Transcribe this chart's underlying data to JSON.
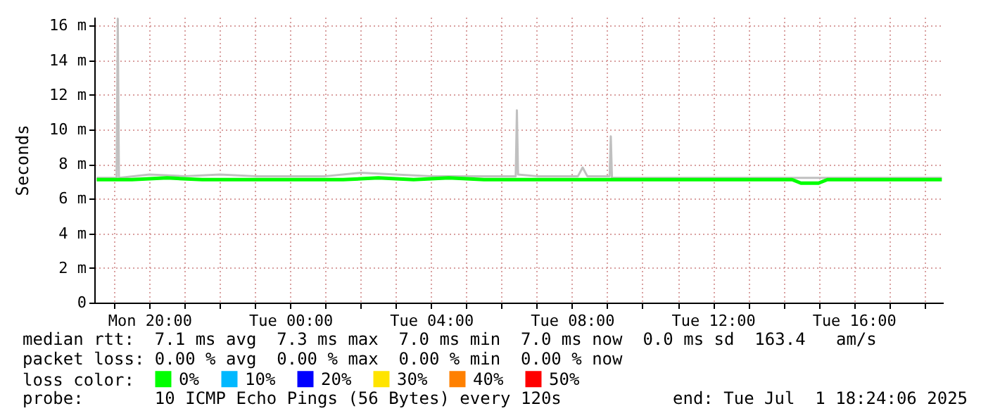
{
  "chart_data": {
    "type": "line",
    "ylabel": "Seconds",
    "legend_title": "loss color:",
    "legend": "bottom",
    "grid": true,
    "line_style": "solid",
    "xlim": [
      "2025-06-30T18:26",
      "2025-07-01T18:32"
    ],
    "xticks": [
      {
        "value": "2025-06-30T19:00",
        "label": null
      },
      {
        "value": "2025-06-30T20:00",
        "label": "Mon 20:00"
      },
      {
        "value": "2025-06-30T21:00",
        "label": null
      },
      {
        "value": "2025-06-30T22:00",
        "label": null
      },
      {
        "value": "2025-06-30T23:00",
        "label": null
      },
      {
        "value": "2025-07-01T00:00",
        "label": "Tue 00:00"
      },
      {
        "value": "2025-07-01T01:00",
        "label": null
      },
      {
        "value": "2025-07-01T02:00",
        "label": null
      },
      {
        "value": "2025-07-01T03:00",
        "label": null
      },
      {
        "value": "2025-07-01T04:00",
        "label": "Tue 04:00"
      },
      {
        "value": "2025-07-01T05:00",
        "label": null
      },
      {
        "value": "2025-07-01T06:00",
        "label": null
      },
      {
        "value": "2025-07-01T07:00",
        "label": null
      },
      {
        "value": "2025-07-01T08:00",
        "label": "Tue 08:00"
      },
      {
        "value": "2025-07-01T09:00",
        "label": null
      },
      {
        "value": "2025-07-01T10:00",
        "label": null
      },
      {
        "value": "2025-07-01T11:00",
        "label": null
      },
      {
        "value": "2025-07-01T12:00",
        "label": "Tue 12:00"
      },
      {
        "value": "2025-07-01T13:00",
        "label": null
      },
      {
        "value": "2025-07-01T14:00",
        "label": null
      },
      {
        "value": "2025-07-01T15:00",
        "label": null
      },
      {
        "value": "2025-07-01T16:00",
        "label": "Tue 16:00"
      },
      {
        "value": "2025-07-01T17:00",
        "label": null
      },
      {
        "value": "2025-07-01T18:00",
        "label": null
      }
    ],
    "ylim": [
      0,
      16.5
    ],
    "yticks": [
      0,
      {
        "value": 2,
        "label": "2 m"
      },
      {
        "value": 4,
        "label": "4 m"
      },
      {
        "value": 6,
        "label": "6 m"
      },
      {
        "value": 8,
        "label": "8 m"
      },
      {
        "value": 10,
        "label": "10 m"
      },
      {
        "value": 12,
        "label": "12 m"
      },
      {
        "value": 14,
        "label": "14 m"
      },
      {
        "value": 16,
        "label": "16 m"
      }
    ],
    "series": [
      {
        "color": "#c0c0c0",
        "x": [
          "2025-06-30T18:30",
          "2025-06-30T19:04",
          "2025-06-30T19:06",
          "2025-06-30T19:08",
          "2025-06-30T20:00",
          "2025-06-30T21:00",
          "2025-06-30T22:00",
          "2025-06-30T23:00",
          "2025-07-01T00:00",
          "2025-07-01T01:00",
          "2025-07-01T02:00",
          "2025-07-01T03:00",
          "2025-07-01T04:00",
          "2025-07-01T05:00",
          "2025-07-01T06:00",
          "2025-07-01T06:24",
          "2025-07-01T06:26",
          "2025-07-01T06:28",
          "2025-07-01T07:00",
          "2025-07-01T08:00",
          "2025-07-01T08:10",
          "2025-07-01T08:18",
          "2025-07-01T08:26",
          "2025-07-01T09:04",
          "2025-07-01T09:06",
          "2025-07-01T09:08",
          "2025-07-01T10:00",
          "2025-07-01T11:00",
          "2025-07-01T12:00",
          "2025-07-01T13:00",
          "2025-07-01T14:00",
          "2025-07-01T15:00",
          "2025-07-01T16:00",
          "2025-07-01T17:00",
          "2025-07-01T18:00",
          "2025-07-01T18:30"
        ],
        "values": [
          7.2,
          7.2,
          16.4,
          7.2,
          7.4,
          7.3,
          7.4,
          7.3,
          7.3,
          7.3,
          7.5,
          7.4,
          7.3,
          7.3,
          7.3,
          7.3,
          11.1,
          7.4,
          7.3,
          7.3,
          7.3,
          7.8,
          7.3,
          7.3,
          9.6,
          7.2,
          7.2,
          7.2,
          7.2,
          7.2,
          7.2,
          7.2,
          7.2,
          7.2,
          7.2,
          7.2
        ]
      },
      {
        "name": "0%",
        "color": "#00ff00",
        "x": [
          "2025-06-30T18:30",
          "2025-06-30T19:30",
          "2025-06-30T20:30",
          "2025-06-30T21:30",
          "2025-06-30T22:30",
          "2025-06-30T23:30",
          "2025-07-01T00:30",
          "2025-07-01T01:30",
          "2025-07-01T02:30",
          "2025-07-01T03:30",
          "2025-07-01T04:30",
          "2025-07-01T05:30",
          "2025-07-01T06:30",
          "2025-07-01T07:30",
          "2025-07-01T08:30",
          "2025-07-01T09:30",
          "2025-07-01T10:30",
          "2025-07-01T11:30",
          "2025-07-01T12:30",
          "2025-07-01T13:30",
          "2025-07-01T14:15",
          "2025-07-01T14:30",
          "2025-07-01T15:00",
          "2025-07-01T15:15",
          "2025-07-01T15:30",
          "2025-07-01T16:30",
          "2025-07-01T17:30",
          "2025-07-01T18:30"
        ],
        "values": [
          7.1,
          7.1,
          7.2,
          7.1,
          7.1,
          7.1,
          7.1,
          7.1,
          7.2,
          7.1,
          7.2,
          7.1,
          7.1,
          7.1,
          7.1,
          7.1,
          7.1,
          7.1,
          7.1,
          7.1,
          7.1,
          6.9,
          6.9,
          7.1,
          7.1,
          7.1,
          7.1,
          7.1
        ]
      },
      {
        "name": "10%",
        "color": "#00b8ff"
      },
      {
        "name": "20%",
        "color": "#0000ff"
      },
      {
        "name": "30%",
        "color": "#ffe400"
      },
      {
        "name": "40%",
        "color": "#ff8000"
      },
      {
        "name": "50%",
        "color": "#ff0000"
      }
    ],
    "annotations": [
      "median rtt:  7.1 ms avg  7.3 ms max  7.0 ms min  7.0 ms now  0.0 ms sd  163.4   am/s",
      "packet loss: 0.00 % avg  0.00 % max  0.00 % min  0.00 % now",
      "probe:       10 ICMP Echo Pings (56 Bytes) every 120s",
      "end: Tue Jul  1 18:24:06 2025"
    ]
  }
}
